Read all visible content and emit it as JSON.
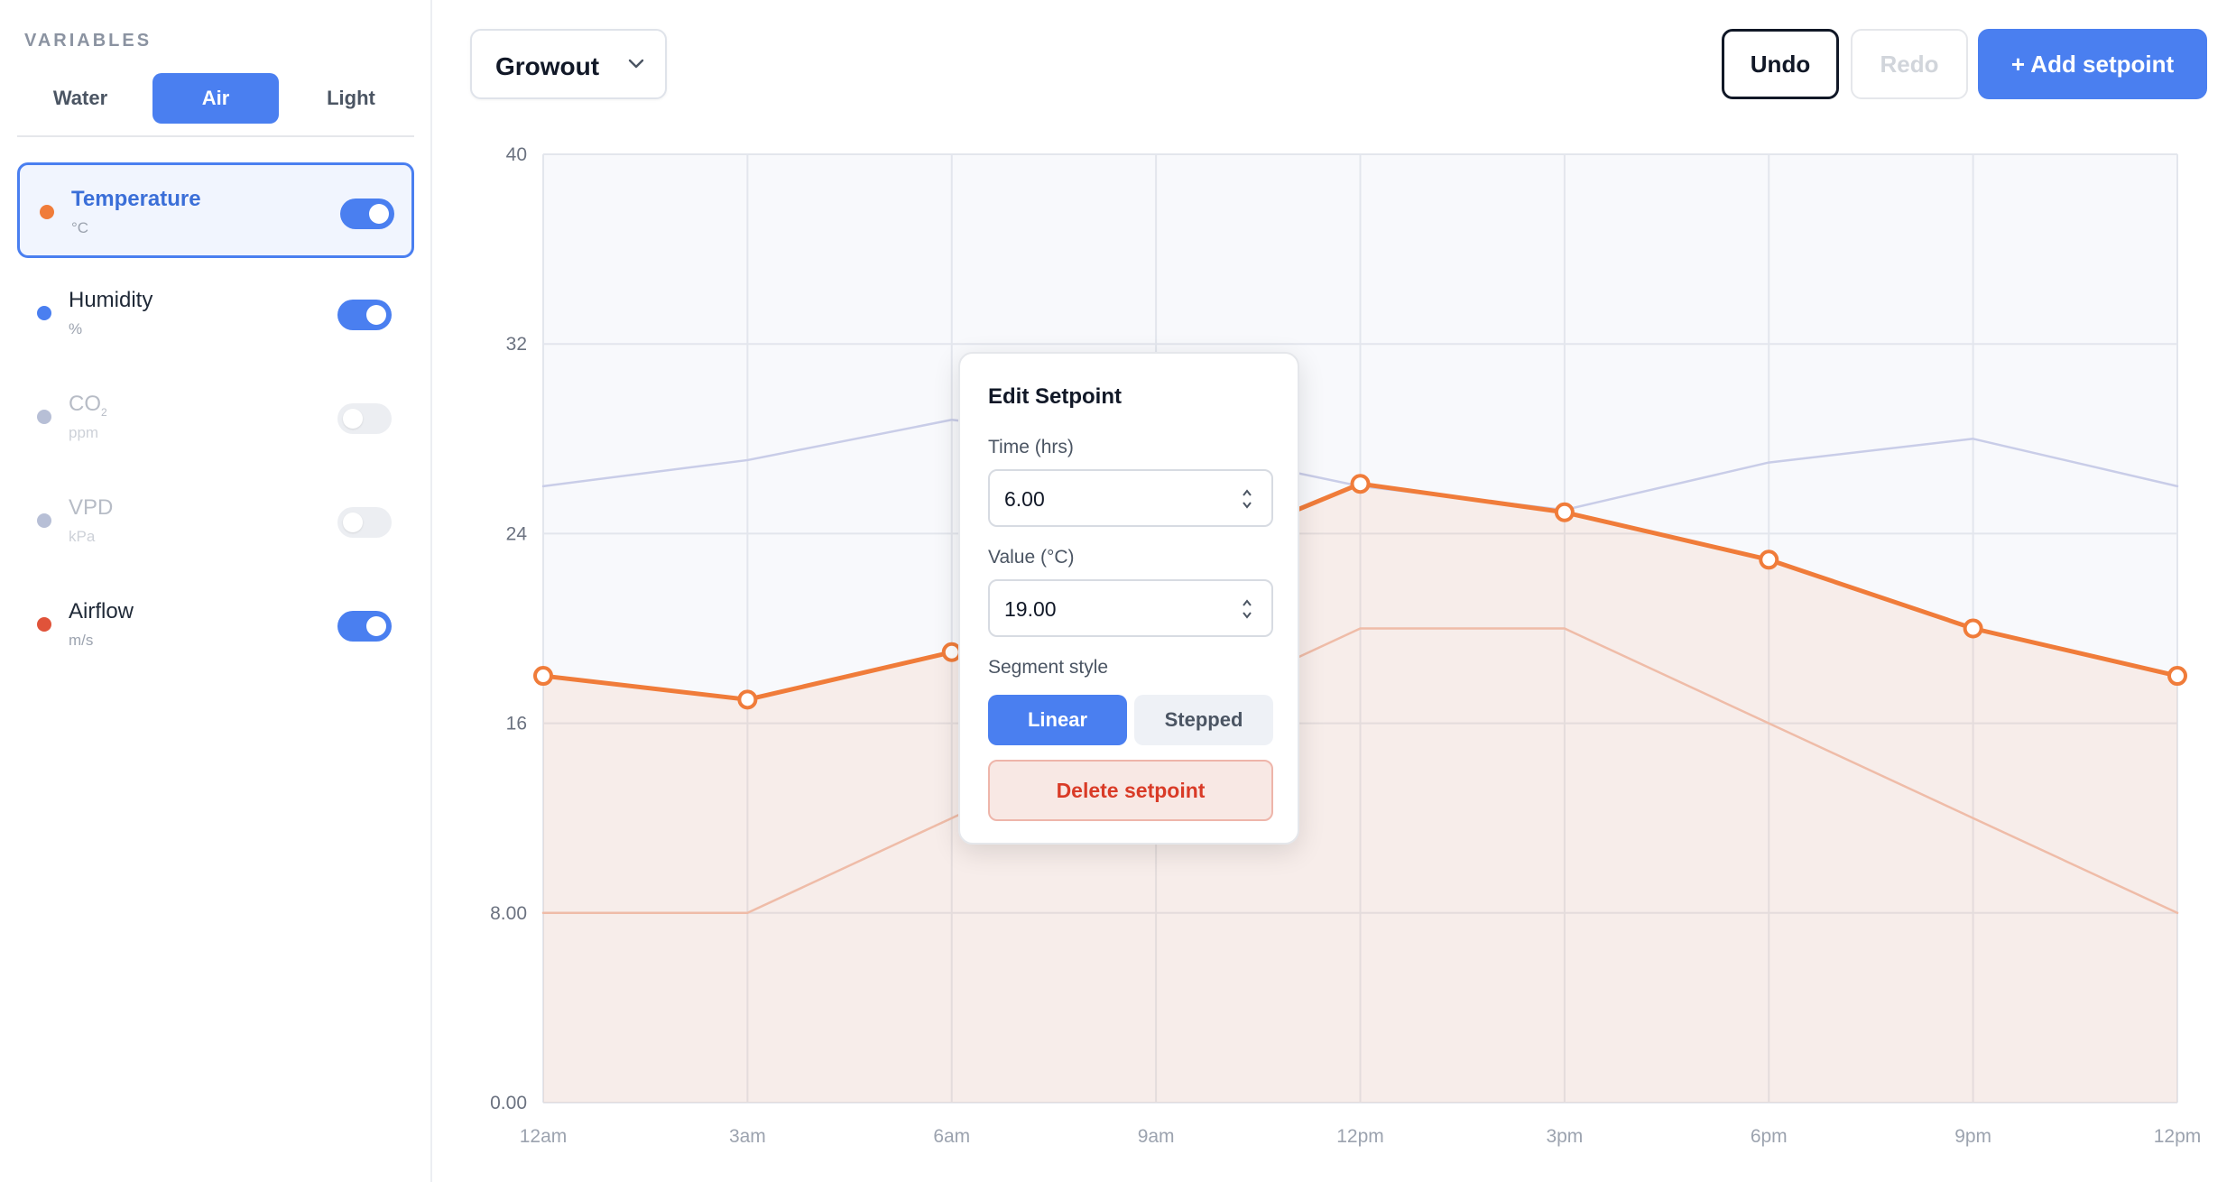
{
  "sidebar": {
    "section_label": "VARIABLES",
    "tabs": [
      {
        "label": "Water",
        "active": false
      },
      {
        "label": "Air",
        "active": true
      },
      {
        "label": "Light",
        "active": false
      }
    ],
    "variables": [
      {
        "name": "Temperature",
        "unit": "°C",
        "color": "#f07c3a",
        "enabled": true,
        "selected": true
      },
      {
        "name": "Humidity",
        "unit": "%",
        "color": "#4a7ff0",
        "enabled": true,
        "selected": false
      },
      {
        "name": "CO",
        "sub": "2",
        "unit": "ppm",
        "color": "#b7bfd6",
        "enabled": false,
        "selected": false
      },
      {
        "name": "VPD",
        "unit": "kPa",
        "color": "#b7bfd6",
        "enabled": false,
        "selected": false
      },
      {
        "name": "Airflow",
        "unit": "m/s",
        "color": "#e0533a",
        "enabled": true,
        "selected": false
      }
    ]
  },
  "toolbar": {
    "profile": "Growout",
    "undo_label": "Undo",
    "redo_label": "Redo",
    "add_label": "+ Add setpoint"
  },
  "popup": {
    "title": "Edit Setpoint",
    "time_label": "Time (hrs)",
    "time_value": "6.00",
    "value_label": "Value (°C)",
    "value_value": "19.00",
    "segment_label": "Segment style",
    "linear_label": "Linear",
    "stepped_label": "Stepped",
    "delete_label": "Delete setpoint"
  },
  "chart_data": {
    "type": "line",
    "x_tick_labels": [
      "12am",
      "3am",
      "6am",
      "9am",
      "12pm",
      "3pm",
      "6pm",
      "9pm",
      "12pm"
    ],
    "y_tick_labels": [
      "0.00",
      "8.00",
      "16",
      "24",
      "32",
      "40"
    ],
    "x_range": [
      0,
      24
    ],
    "ylim": [
      0,
      40
    ],
    "series": [
      {
        "name": "Temperature",
        "color": "#f07c3a",
        "x": [
          0,
          3,
          6,
          12,
          15,
          18,
          21,
          24
        ],
        "y": [
          18,
          17,
          19,
          26.1,
          24.9,
          22.9,
          20,
          18
        ],
        "markers": true,
        "fill": true
      },
      {
        "name": "Humidity",
        "color": "#c9cde8",
        "x": [
          0,
          3,
          6,
          9,
          12,
          15,
          18,
          21,
          24
        ],
        "y": [
          26,
          27.1,
          28.8,
          27.8,
          26,
          25,
          27,
          28,
          26
        ]
      },
      {
        "name": "Airflow",
        "color": "#efbca8",
        "x": [
          0,
          3,
          6,
          9,
          12,
          15,
          18,
          21,
          24
        ],
        "y": [
          8,
          8,
          12,
          16,
          20,
          20,
          16,
          12,
          8
        ]
      }
    ],
    "grid": true,
    "legend": "none"
  }
}
